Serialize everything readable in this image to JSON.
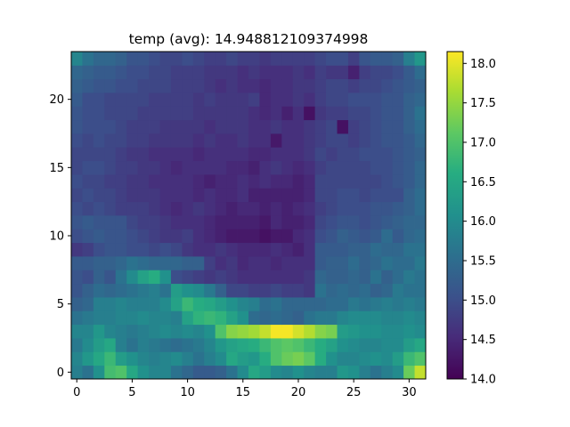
{
  "chart_data": {
    "type": "heatmap",
    "title": "temp (avg): 14.948812109374998",
    "xlabel": "",
    "ylabel": "",
    "n_cols": 32,
    "n_rows": 24,
    "xlim": [
      -0.5,
      31.5
    ],
    "ylim": [
      -0.5,
      23.5
    ],
    "x_ticks": [
      0,
      5,
      10,
      15,
      20,
      25,
      30
    ],
    "y_ticks": [
      0,
      5,
      10,
      15,
      20
    ],
    "colorbar": {
      "min": 14.0,
      "max": 18.15,
      "ticks": [
        14.0,
        14.5,
        15.0,
        15.5,
        16.0,
        16.5,
        17.0,
        17.5,
        18.0
      ],
      "tick_labels": [
        "14.0",
        "14.5",
        "15.0",
        "15.5",
        "16.0",
        "16.5",
        "17.0",
        "17.5",
        "18.0"
      ],
      "colormap": "viridis"
    },
    "origin": "lower",
    "values": [
      [
        15.8,
        15.6,
        16.1,
        16.9,
        17.0,
        16.5,
        16.1,
        15.9,
        15.9,
        15.6,
        15.4,
        15.2,
        15.2,
        15.3,
        15.6,
        16.0,
        16.5,
        16.3,
        16.0,
        15.9,
        16.1,
        15.9,
        15.8,
        15.8,
        16.2,
        16.1,
        15.8,
        15.6,
        15.8,
        16.0,
        17.2,
        17.8
      ],
      [
        15.9,
        16.2,
        16.5,
        16.8,
        16.3,
        16.1,
        15.9,
        15.8,
        15.9,
        16.0,
        15.8,
        15.6,
        15.8,
        16.0,
        16.5,
        16.3,
        16.2,
        16.6,
        17.0,
        17.2,
        17.3,
        17.1,
        16.6,
        16.1,
        15.9,
        15.9,
        16.0,
        16.1,
        16.0,
        16.3,
        16.8,
        17.0
      ],
      [
        15.7,
        16.0,
        16.3,
        16.5,
        15.8,
        15.6,
        15.8,
        15.7,
        15.6,
        15.5,
        15.6,
        15.7,
        15.9,
        16.2,
        16.4,
        16.5,
        16.6,
        16.8,
        17.0,
        17.1,
        17.0,
        16.8,
        16.6,
        16.4,
        16.1,
        16.0,
        15.9,
        15.9,
        16.0,
        16.0,
        16.3,
        16.5
      ],
      [
        15.9,
        15.9,
        16.2,
        15.9,
        15.8,
        15.7,
        15.8,
        15.9,
        16.0,
        15.9,
        16.0,
        15.9,
        16.1,
        17.0,
        17.4,
        17.5,
        17.6,
        17.8,
        18.1,
        18.1,
        17.9,
        17.7,
        17.4,
        17.3,
        16.3,
        16.2,
        16.1,
        16.1,
        16.0,
        16.0,
        16.1,
        16.0
      ],
      [
        15.6,
        15.7,
        15.8,
        15.8,
        15.9,
        15.9,
        16.0,
        15.9,
        15.9,
        15.8,
        16.4,
        16.7,
        16.8,
        16.7,
        16.4,
        16.1,
        15.5,
        15.4,
        15.5,
        15.4,
        15.3,
        15.6,
        15.7,
        15.7,
        15.9,
        16.0,
        16.0,
        16.0,
        15.9,
        15.9,
        16.0,
        15.9
      ],
      [
        15.3,
        15.4,
        15.8,
        15.8,
        15.9,
        15.8,
        15.8,
        15.8,
        16.0,
        16.4,
        16.8,
        16.6,
        16.5,
        16.3,
        16.1,
        15.9,
        15.8,
        15.5,
        15.6,
        15.4,
        15.4,
        15.4,
        15.4,
        15.5,
        15.5,
        15.7,
        15.6,
        15.7,
        15.8,
        15.7,
        15.8,
        15.7
      ],
      [
        15.1,
        15.3,
        15.5,
        15.4,
        15.5,
        15.6,
        15.7,
        15.8,
        15.6,
        16.3,
        16.1,
        16.0,
        15.7,
        15.3,
        14.9,
        14.9,
        14.8,
        14.8,
        14.9,
        14.8,
        14.8,
        14.7,
        15.6,
        15.4,
        15.5,
        15.4,
        15.5,
        15.3,
        15.4,
        15.7,
        15.6,
        15.6
      ],
      [
        15.1,
        15.0,
        15.3,
        15.1,
        15.6,
        16.0,
        16.4,
        16.6,
        16.1,
        15.0,
        14.9,
        14.8,
        14.7,
        14.8,
        14.7,
        14.6,
        14.6,
        14.6,
        14.6,
        14.6,
        14.6,
        14.7,
        15.4,
        15.3,
        15.3,
        15.4,
        15.3,
        15.6,
        15.3,
        15.5,
        15.7,
        15.6
      ],
      [
        15.2,
        15.2,
        15.3,
        15.3,
        15.4,
        15.6,
        15.5,
        15.4,
        15.4,
        15.4,
        15.3,
        15.3,
        14.8,
        14.6,
        14.7,
        14.5,
        14.6,
        14.6,
        14.5,
        14.6,
        14.6,
        14.6,
        15.2,
        15.3,
        15.3,
        15.5,
        15.3,
        15.4,
        15.6,
        15.5,
        15.5,
        15.7
      ],
      [
        14.7,
        14.8,
        15.0,
        15.1,
        15.1,
        15.0,
        15.0,
        14.9,
        15.0,
        14.9,
        14.7,
        14.6,
        14.6,
        14.7,
        14.6,
        14.5,
        14.5,
        14.5,
        14.6,
        14.5,
        14.4,
        14.6,
        15.2,
        15.2,
        15.2,
        15.3,
        15.3,
        15.5,
        15.4,
        15.4,
        15.6,
        15.6
      ],
      [
        15.0,
        15.1,
        15.2,
        15.1,
        15.1,
        15.0,
        14.9,
        14.8,
        14.7,
        14.7,
        14.8,
        14.6,
        14.5,
        14.4,
        14.3,
        14.3,
        14.3,
        14.2,
        14.3,
        14.3,
        14.5,
        14.6,
        15.0,
        15.1,
        15.3,
        15.2,
        15.1,
        15.2,
        15.5,
        15.2,
        15.4,
        15.5
      ],
      [
        15.1,
        15.2,
        15.1,
        15.1,
        15.1,
        14.9,
        14.8,
        14.8,
        14.7,
        14.6,
        14.6,
        14.6,
        14.5,
        14.4,
        14.4,
        14.4,
        14.4,
        14.3,
        14.5,
        14.4,
        14.4,
        14.5,
        14.9,
        15.0,
        15.1,
        15.1,
        15.0,
        15.1,
        15.2,
        15.3,
        15.4,
        15.4
      ],
      [
        15.0,
        14.9,
        15.0,
        14.9,
        14.8,
        14.8,
        14.8,
        14.7,
        14.6,
        14.5,
        14.6,
        14.7,
        14.6,
        14.5,
        14.4,
        14.5,
        14.5,
        14.4,
        14.5,
        14.4,
        14.5,
        14.6,
        14.8,
        14.9,
        15.0,
        15.0,
        15.0,
        15.1,
        15.1,
        15.2,
        15.3,
        15.5
      ],
      [
        14.9,
        15.0,
        14.9,
        14.9,
        14.8,
        14.7,
        14.7,
        14.7,
        14.6,
        14.6,
        14.6,
        14.5,
        14.6,
        14.5,
        14.5,
        14.6,
        14.4,
        14.4,
        14.4,
        14.4,
        14.4,
        14.5,
        14.9,
        14.9,
        15.0,
        15.0,
        14.9,
        15.0,
        15.0,
        15.0,
        15.3,
        15.5
      ],
      [
        15.0,
        14.9,
        14.9,
        14.8,
        14.8,
        14.7,
        14.7,
        14.6,
        14.6,
        14.6,
        14.6,
        14.5,
        14.4,
        14.5,
        14.5,
        14.6,
        14.5,
        14.6,
        14.5,
        14.5,
        14.4,
        14.5,
        14.9,
        14.9,
        14.9,
        14.9,
        14.9,
        14.9,
        15.0,
        15.1,
        15.2,
        15.4
      ],
      [
        14.9,
        15.0,
        15.0,
        14.9,
        14.8,
        14.8,
        14.7,
        14.7,
        14.6,
        14.5,
        14.6,
        14.6,
        14.6,
        14.6,
        14.5,
        14.5,
        14.4,
        14.6,
        14.7,
        14.6,
        14.5,
        14.6,
        14.8,
        14.9,
        14.9,
        14.9,
        14.9,
        15.0,
        15.0,
        15.1,
        15.2,
        15.4
      ],
      [
        14.9,
        14.9,
        14.9,
        14.9,
        14.8,
        14.7,
        14.7,
        14.6,
        14.6,
        14.6,
        14.6,
        14.5,
        14.6,
        14.6,
        14.6,
        14.6,
        14.5,
        14.5,
        14.6,
        14.6,
        14.6,
        14.7,
        14.9,
        14.8,
        14.9,
        14.9,
        15.0,
        15.0,
        15.0,
        15.1,
        15.2,
        15.3
      ],
      [
        15.0,
        14.9,
        15.0,
        14.9,
        14.9,
        14.8,
        14.8,
        14.7,
        14.7,
        14.7,
        14.7,
        14.6,
        14.7,
        14.6,
        14.6,
        14.7,
        14.6,
        14.6,
        14.3,
        14.6,
        14.6,
        14.7,
        14.8,
        14.9,
        14.9,
        14.8,
        14.9,
        15.0,
        15.1,
        15.1,
        15.2,
        15.4
      ],
      [
        15.1,
        15.0,
        15.0,
        15.0,
        14.9,
        14.8,
        14.8,
        14.8,
        14.7,
        14.7,
        14.7,
        14.7,
        14.6,
        14.7,
        14.7,
        14.7,
        14.6,
        14.6,
        14.7,
        14.6,
        14.6,
        14.7,
        14.8,
        14.9,
        14.2,
        14.8,
        14.9,
        15.0,
        15.1,
        15.1,
        15.3,
        15.5
      ],
      [
        15.1,
        15.0,
        15.0,
        14.9,
        14.9,
        14.9,
        14.8,
        14.8,
        14.8,
        14.8,
        14.8,
        14.7,
        14.7,
        14.7,
        14.7,
        14.7,
        14.6,
        14.5,
        14.6,
        14.4,
        14.6,
        14.2,
        14.7,
        14.8,
        14.8,
        14.9,
        14.9,
        15.0,
        15.1,
        15.1,
        15.3,
        15.6
      ],
      [
        15.2,
        15.0,
        15.0,
        14.9,
        14.9,
        14.9,
        14.9,
        14.8,
        14.8,
        14.8,
        14.8,
        14.7,
        14.8,
        14.7,
        14.7,
        14.7,
        14.8,
        14.5,
        14.6,
        14.6,
        14.7,
        14.6,
        14.8,
        14.9,
        14.9,
        15.0,
        15.0,
        15.0,
        15.1,
        15.1,
        15.3,
        15.4
      ],
      [
        15.3,
        15.2,
        15.1,
        15.1,
        15.0,
        15.0,
        14.9,
        14.9,
        14.9,
        14.8,
        14.8,
        14.8,
        14.7,
        14.6,
        14.7,
        14.6,
        14.6,
        14.5,
        14.6,
        14.6,
        14.7,
        14.7,
        14.8,
        14.9,
        14.9,
        14.8,
        14.9,
        14.9,
        15.0,
        15.1,
        15.2,
        15.3
      ],
      [
        15.4,
        15.3,
        15.2,
        15.2,
        15.1,
        15.0,
        15.0,
        14.9,
        14.9,
        14.8,
        14.8,
        14.8,
        14.7,
        14.7,
        14.7,
        14.6,
        14.7,
        14.6,
        14.6,
        14.6,
        14.7,
        14.6,
        14.8,
        14.7,
        14.7,
        14.4,
        14.8,
        14.9,
        14.9,
        15.0,
        15.2,
        15.5
      ],
      [
        15.9,
        15.6,
        15.4,
        15.4,
        15.3,
        15.1,
        15.1,
        15.0,
        14.9,
        14.9,
        15.0,
        14.9,
        14.8,
        14.8,
        14.9,
        14.8,
        14.8,
        14.7,
        14.8,
        14.8,
        14.8,
        14.8,
        14.9,
        15.0,
        15.0,
        14.8,
        15.1,
        15.2,
        15.2,
        15.3,
        15.8,
        16.2
      ]
    ]
  }
}
